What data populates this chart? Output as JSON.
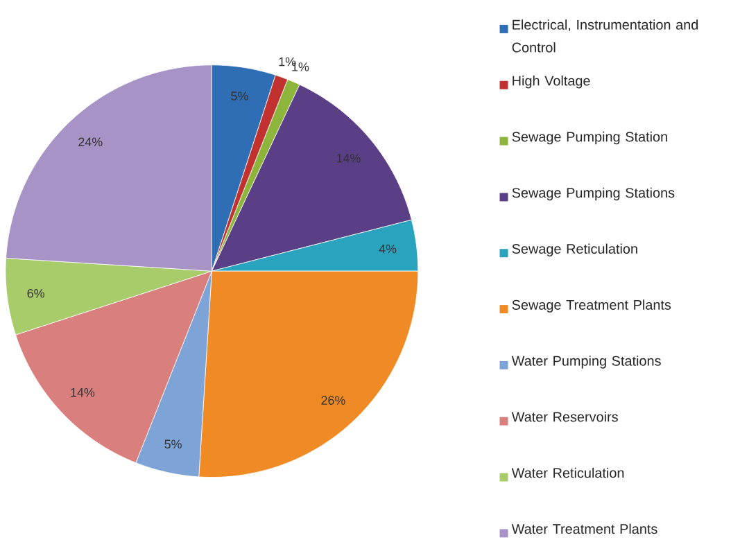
{
  "chart_data": {
    "type": "pie",
    "categories": [
      "Electrical, Instrumentation and Control",
      "High Voltage",
      "Sewage Pumping Station",
      "Sewage Pumping Stations",
      "Sewage Reticulation",
      "Sewage Treatment Plants",
      "Water Pumping Stations",
      "Water Reservoirs",
      "Water Reticulation",
      "Water Treatment Plants"
    ],
    "values": [
      5,
      1,
      1,
      14,
      4,
      26,
      5,
      14,
      6,
      24
    ],
    "value_labels": [
      "5%",
      "1%",
      "1%",
      "14%",
      "4%",
      "26%",
      "5%",
      "14%",
      "6%",
      "24%"
    ],
    "colors": [
      "#2f6eb5",
      "#c0312f",
      "#8db53c",
      "#5b3f86",
      "#2aa3bf",
      "#f08a24",
      "#7ea3d6",
      "#d9807e",
      "#a9cc6b",
      "#a793c6"
    ],
    "legend": "right"
  }
}
